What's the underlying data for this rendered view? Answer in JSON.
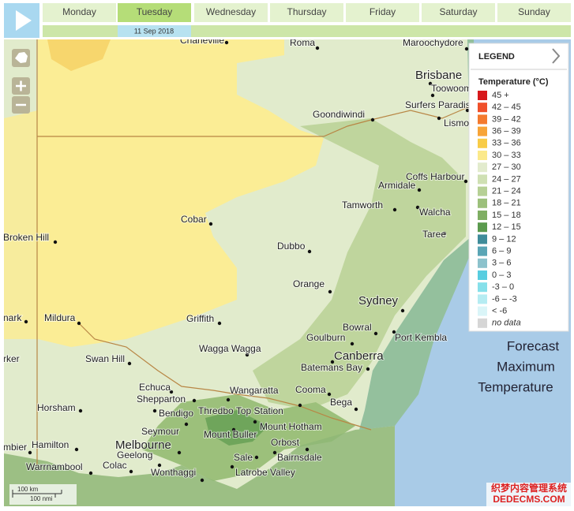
{
  "header": {
    "days": [
      "Monday",
      "Tuesday",
      "Wednesday",
      "Thursday",
      "Friday",
      "Saturday",
      "Sunday"
    ],
    "selected_date": "11 Sep 2018"
  },
  "map": {
    "places": [
      "Charleville",
      "Roma",
      "Maroochydore",
      "Brisbane",
      "Toowoomba",
      "Surfers Paradise",
      "Lismore",
      "Goondiwindi",
      "Coffs Harbour",
      "Armidale",
      "Tamworth",
      "Walcha",
      "Taree",
      "Cobar",
      "Broken Hill",
      "Dubbo",
      "Orange",
      "Sydney",
      "Bowral",
      "Port Kembla",
      "Goulburn",
      "Canberra",
      "Batemans Bay",
      "Griffith",
      "Wagga Wagga",
      "nark",
      "Mildura",
      "rker",
      "Swan Hill",
      "Echuca",
      "Shepparton",
      "Wangaratta",
      "Cooma",
      "Bega",
      "Horsham",
      "Bendigo",
      "Thredbo Top Station",
      "Seymour",
      "Mount Hotham",
      "Mount Buller",
      "mbier",
      "Hamilton",
      "Melbourne",
      "Orbost",
      "Geelong",
      "Warrnambool",
      "Colac",
      "Sale",
      "Bairnsdale",
      "Wonthaggi",
      "Latrobe Valley"
    ],
    "overlay": [
      "Forecast",
      "Maximum",
      "Temperature"
    ],
    "scale": [
      "100 km",
      "100 nmi"
    ]
  },
  "legend": {
    "title": "LEGEND",
    "subtitle": "Temperature (°C)",
    "items": [
      {
        "label": "45 +",
        "color": "#d7191c"
      },
      {
        "label": "42 – 45",
        "color": "#f0502a"
      },
      {
        "label": "39 – 42",
        "color": "#f47a2e"
      },
      {
        "label": "36 – 39",
        "color": "#f7a437"
      },
      {
        "label": "33 – 36",
        "color": "#f8cc48"
      },
      {
        "label": "30 – 33",
        "color": "#fbe98a"
      },
      {
        "label": "27 – 30",
        "color": "#e2ebcd"
      },
      {
        "label": "24 – 27",
        "color": "#cfe0b3"
      },
      {
        "label": "21 – 24",
        "color": "#b6d095"
      },
      {
        "label": "18 – 21",
        "color": "#9cc07b"
      },
      {
        "label": "15 – 18",
        "color": "#7fae63"
      },
      {
        "label": "12 – 15",
        "color": "#5b9a4e"
      },
      {
        "label": "9 – 12",
        "color": "#3f8c9a"
      },
      {
        "label": "6 – 9",
        "color": "#5aa5b5"
      },
      {
        "label": "3 – 6",
        "color": "#8cc2cc"
      },
      {
        "label": "0 – 3",
        "color": "#58cde0"
      },
      {
        "label": "-3 – 0",
        "color": "#86e0ea"
      },
      {
        "label": "-6 – -3",
        "color": "#b5ecf2"
      },
      {
        "label": "< -6",
        "color": "#daf5f8"
      },
      {
        "label": "no data",
        "color": "#d6d6d6"
      }
    ]
  },
  "watermark": [
    "织梦内容管理系统",
    "DEDECMS.COM"
  ]
}
